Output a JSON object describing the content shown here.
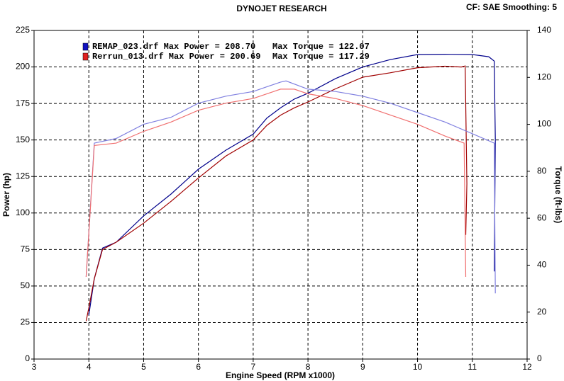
{
  "chart_data": {
    "type": "line",
    "title": "DYNOJET RESEARCH",
    "subtitle": "CF: SAE  Smoothing: 5",
    "x_label": "Engine Speed (RPM x1000)",
    "y_label": "Power (hp)",
    "y2_label": "Torque (ft-lbs)",
    "xlim": [
      3,
      12
    ],
    "xticks": [
      3,
      4,
      5,
      6,
      7,
      8,
      9,
      10,
      11,
      12
    ],
    "ylim": [
      0,
      225
    ],
    "yticks": [
      0,
      25,
      50,
      75,
      100,
      125,
      150,
      175,
      200,
      225
    ],
    "y2lim": [
      0,
      140
    ],
    "y2ticks": [
      0,
      20,
      40,
      60,
      80,
      100,
      120,
      140
    ],
    "grid": true,
    "legend": [
      {
        "name": "REMAP_023.drf",
        "color": "#1010c0",
        "max_power": "Max Power = 208.70",
        "max_torque": "Max Torque = 122.07"
      },
      {
        "name": "Rerrun_013.drf",
        "color": "#e02020",
        "max_power": "Max Power = 200.69",
        "max_torque": "Max Torque = 117.29"
      }
    ],
    "series": [
      {
        "color": "#00008b",
        "axis": "y",
        "x": [
          4.0,
          4.1,
          4.25,
          4.5,
          5,
          5.5,
          6,
          6.5,
          7,
          7.25,
          7.5,
          7.75,
          8,
          8.5,
          9,
          9.5,
          10,
          10.5,
          11,
          11.3,
          11.4,
          11.42,
          11.4
        ],
        "values": [
          30,
          55,
          76,
          80,
          98,
          113,
          130,
          143,
          154,
          165,
          172,
          178,
          182,
          192,
          200,
          205,
          208.5,
          208.7,
          208.5,
          207,
          204,
          150,
          60
        ]
      },
      {
        "color": "#a00000",
        "axis": "y",
        "x": [
          3.95,
          4.0,
          4.1,
          4.25,
          4.5,
          5,
          5.5,
          6,
          6.5,
          7,
          7.25,
          7.5,
          7.75,
          8,
          8.5,
          9,
          9.5,
          10,
          10.5,
          10.8,
          10.87,
          10.9,
          10.88
        ],
        "values": [
          26,
          35,
          55,
          75,
          80,
          93,
          108,
          124,
          139,
          150,
          160,
          167,
          172,
          176,
          185,
          193,
          196,
          199.5,
          200.5,
          200,
          200.7,
          120,
          85
        ]
      },
      {
        "color": "#8080e0",
        "axis": "y2",
        "x": [
          3.95,
          4.1,
          4.5,
          5,
          5.5,
          6,
          6.5,
          7,
          7.5,
          7.6,
          8,
          8.5,
          9,
          9.5,
          10,
          10.5,
          11,
          11.4,
          11.42
        ],
        "values": [
          35,
          92,
          94,
          100,
          103,
          109,
          112,
          114,
          118,
          118.5,
          115,
          114,
          112,
          109,
          105,
          101,
          96,
          92,
          28
        ]
      },
      {
        "color": "#f07070",
        "axis": "y2",
        "x": [
          3.95,
          4.1,
          4.5,
          5,
          5.5,
          6,
          6.5,
          7,
          7.5,
          7.75,
          8,
          8.5,
          9,
          9.5,
          10,
          10.5,
          10.85,
          10.88
        ],
        "values": [
          35,
          91,
          92,
          97,
          101,
          106,
          109,
          111,
          115,
          115,
          113,
          111,
          108,
          104,
          100,
          95,
          92,
          35
        ]
      }
    ]
  }
}
